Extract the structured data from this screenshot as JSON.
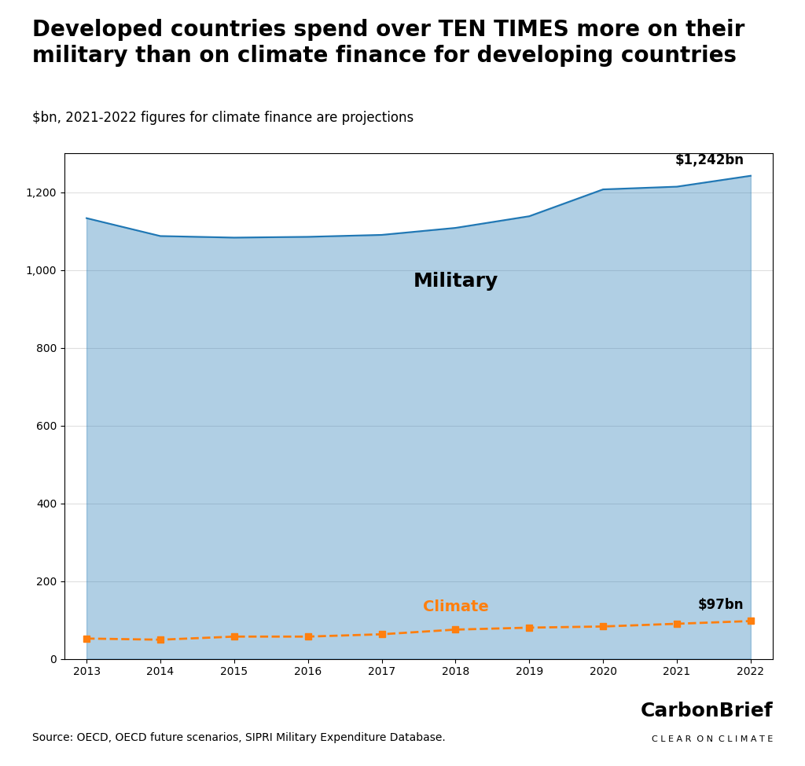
{
  "chart_data": {
    "type": "line",
    "title": "Developed countries spend over TEN TIMES more on their military than on climate finance for developing countries",
    "subtitle": "$bn, 2021-2022 figures for climate finance are projections",
    "x": [
      2013,
      2014,
      2015,
      2016,
      2017,
      2018,
      2019,
      2020,
      2021,
      2022
    ],
    "series": [
      {
        "name": "Military",
        "type": "area",
        "values": [
          1133,
          1087,
          1083,
          1085,
          1090,
          1108,
          1138,
          1207,
          1214,
          1242
        ]
      },
      {
        "name": "Climate",
        "type": "line",
        "line_style": "dashed",
        "marker": "square",
        "values": [
          52,
          49,
          57,
          57,
          63,
          75,
          80,
          83,
          90,
          97
        ]
      }
    ],
    "annotations": [
      {
        "text": "$1,242bn",
        "x": 2022,
        "y": 1242
      },
      {
        "text": "$97bn",
        "x": 2022,
        "y": 97
      }
    ],
    "xlim": [
      2012.7,
      2022.3
    ],
    "xticks": [
      2013,
      2014,
      2015,
      2016,
      2017,
      2018,
      2019,
      2020,
      2021,
      2022
    ],
    "ylim": [
      0,
      1300
    ],
    "yticks": [
      0,
      200,
      400,
      600,
      800,
      {
        "value": 1000,
        "label": "1,000"
      },
      {
        "value": 1200,
        "label": "1,200"
      }
    ],
    "grid": true,
    "source": "Source: OECD, OECD future scenarios, SIPRI Military Expenditure Database.",
    "credit": [
      "CarbonBrief",
      "C L E A R  O N  C L I M A T E"
    ]
  }
}
